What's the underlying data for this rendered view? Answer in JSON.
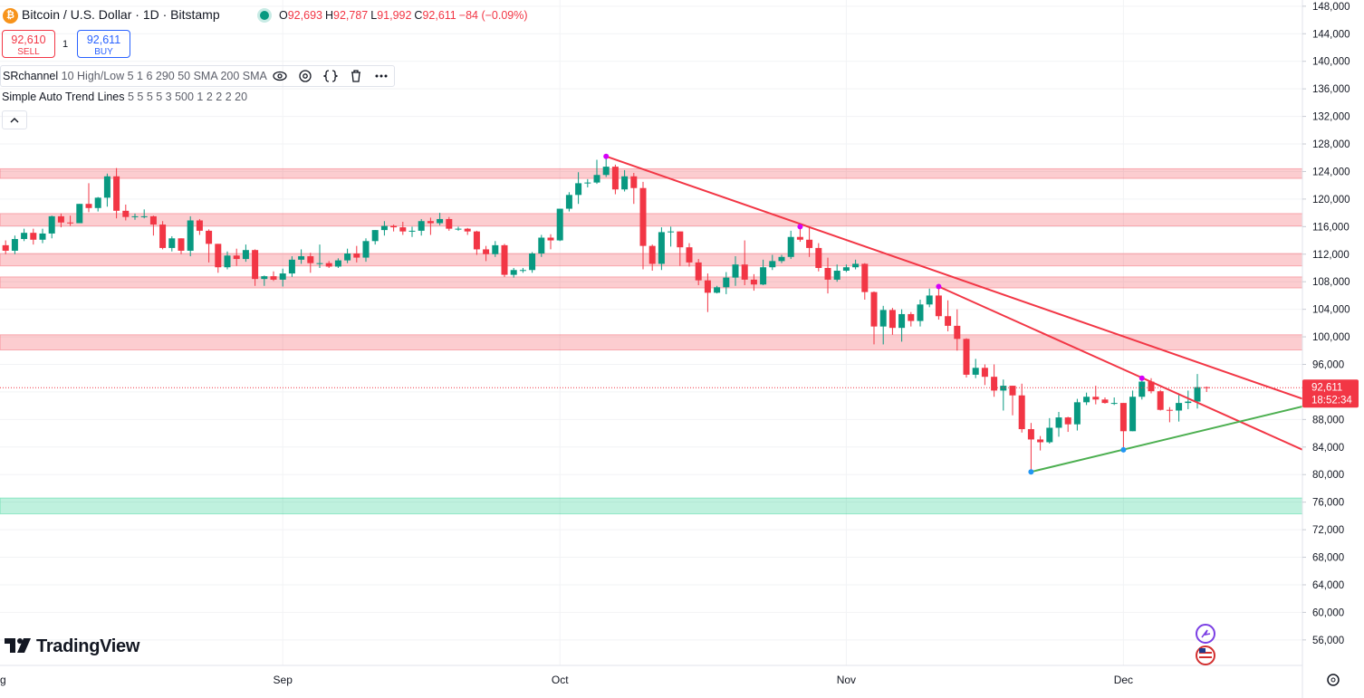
{
  "header": {
    "symbol": "Bitcoin / U.S. Dollar · 1D · Bitstamp",
    "ohlc": [
      {
        "label": "O",
        "value": "92,693"
      },
      {
        "label": "H",
        "value": "92,787"
      },
      {
        "label": "L",
        "value": "91,992"
      },
      {
        "label": "C",
        "value": "92,611"
      }
    ],
    "change": "−84 (−0.09%)"
  },
  "trade": {
    "sell_price": "92,610",
    "sell_label": "SELL",
    "quantity": "1",
    "buy_price": "92,611",
    "buy_label": "BUY"
  },
  "indicators": [
    {
      "name": "SRchannel",
      "params": "10 High/Low 5 1 6 290 50 SMA 200 SMA"
    },
    {
      "name": "Simple Auto Trend Lines",
      "params": "5 5 5 5 3 500 1 2 2 2 20"
    }
  ],
  "brand": "TradingView",
  "chart_data": {
    "type": "candlestick",
    "categories": [
      "Aug",
      null,
      null,
      null,
      null,
      null,
      null,
      null,
      null,
      null,
      null,
      null,
      null,
      null,
      null,
      null,
      null,
      null,
      null,
      null,
      null,
      null,
      null,
      null,
      null,
      null,
      null,
      null,
      null,
      null,
      null,
      "Sep",
      null,
      null,
      null,
      null,
      null,
      null,
      null,
      null,
      null,
      null,
      null,
      null,
      null,
      null,
      null,
      null,
      null,
      null,
      null,
      null,
      null,
      null,
      null,
      null,
      null,
      null,
      null,
      null,
      null,
      "Oct",
      null,
      null,
      null,
      null,
      null,
      null,
      null,
      null,
      null,
      null,
      null,
      null,
      null,
      null,
      null,
      null,
      null,
      null,
      null,
      null,
      null,
      null,
      null,
      null,
      null,
      null,
      null,
      null,
      null,
      null,
      "Nov",
      null,
      null,
      null,
      null,
      null,
      null,
      null,
      null,
      null,
      null,
      null,
      null,
      null,
      null,
      null,
      null,
      null,
      null,
      null,
      null,
      null,
      null,
      null,
      null,
      null,
      null,
      null,
      null,
      null,
      "Dec",
      null,
      null,
      null,
      null,
      null,
      null,
      null,
      null,
      null
    ],
    "open": [
      115700,
      113300,
      112500,
      114200,
      115100,
      114100,
      115000,
      117500,
      116600,
      116500,
      119300,
      118700,
      120200,
      123300,
      118300,
      117400,
      117500,
      117500,
      116300,
      112900,
      114300,
      112500,
      116900,
      115400,
      113500,
      110100,
      111800,
      111300,
      112600,
      108400,
      108800,
      108300,
      109200,
      111200,
      111700,
      110700,
      110700,
      110200,
      111100,
      112100,
      111500,
      113900,
      115500,
      116100,
      115900,
      115300,
      115400,
      116800,
      116500,
      117100,
      115700,
      115700,
      115300,
      112700,
      112000,
      113300,
      109000,
      109700,
      109700,
      112100,
      114400,
      114000,
      118600,
      120600,
      122300,
      122400,
      123500,
      124700,
      121400,
      123300,
      121600,
      113200,
      110600,
      115200,
      115300,
      113000,
      110800,
      108200,
      106400,
      107200,
      108600,
      110500,
      108300,
      107600,
      110100,
      111000,
      111600,
      114500,
      114100,
      112900,
      110000,
      108300,
      109600,
      110100,
      110600,
      106500,
      101500,
      103900,
      101300,
      103300,
      102300,
      104700,
      106000,
      103000,
      101600,
      99700,
      94500,
      95500,
      94200,
      92200,
      92900,
      91500,
      86600,
      85100,
      84700,
      86800,
      88300,
      87300,
      90500,
      91300,
      90900,
      90400,
      90400,
      86300,
      91300,
      93500,
      92100,
      89400,
      89300,
      90400,
      90600,
      92693
    ],
    "high": [
      116100,
      114000,
      114700,
      115700,
      115700,
      115700,
      117600,
      117900,
      117600,
      119300,
      122300,
      120300,
      123700,
      124500,
      119200,
      117900,
      118500,
      117600,
      116800,
      114600,
      114300,
      117500,
      117100,
      115600,
      113500,
      112400,
      112800,
      113400,
      112700,
      108900,
      109500,
      109900,
      111700,
      112700,
      112200,
      113400,
      111000,
      111400,
      112800,
      113200,
      114300,
      115500,
      116800,
      116300,
      116700,
      116000,
      117100,
      117300,
      118000,
      117400,
      116000,
      115800,
      115400,
      113200,
      113900,
      113500,
      110000,
      110000,
      112300,
      114800,
      114900,
      118600,
      121000,
      123900,
      122900,
      125700,
      126200,
      125000,
      124200,
      123800,
      122500,
      113400,
      115900,
      116000,
      115300,
      113600,
      111300,
      109200,
      107400,
      109400,
      111700,
      114000,
      109100,
      111200,
      111900,
      111900,
      115400,
      116100,
      116000,
      113600,
      111500,
      110500,
      110500,
      111200,
      110700,
      106600,
      104500,
      104200,
      104000,
      103600,
      105400,
      107000,
      107300,
      105300,
      104000,
      99800,
      96800,
      96000,
      96000,
      93800,
      92900,
      93200,
      87500,
      85600,
      88200,
      89100,
      88400,
      91000,
      91900,
      92900,
      91200,
      91200,
      90400,
      92200,
      94000,
      94000,
      92300,
      89800,
      91800,
      92200,
      94600,
      92787
    ],
    "low": [
      112800,
      112000,
      112000,
      113900,
      113400,
      113600,
      114300,
      115900,
      116100,
      116500,
      118100,
      118200,
      118900,
      117200,
      116900,
      117000,
      117200,
      114700,
      112700,
      112400,
      112000,
      111700,
      114800,
      110800,
      109300,
      109800,
      110300,
      110900,
      107400,
      107400,
      108100,
      107300,
      108700,
      110600,
      109300,
      110000,
      110000,
      110000,
      110700,
      110800,
      110900,
      113400,
      114700,
      115300,
      114800,
      114500,
      114700,
      114800,
      116200,
      115400,
      115400,
      114800,
      111900,
      111000,
      111600,
      108700,
      108600,
      109300,
      109300,
      111600,
      112700,
      113900,
      118200,
      119300,
      121700,
      122200,
      123200,
      120700,
      121100,
      119300,
      109800,
      109600,
      109700,
      113100,
      110300,
      110200,
      107500,
      103600,
      106300,
      106200,
      107400,
      107500,
      106700,
      107500,
      109700,
      110700,
      111300,
      113800,
      111600,
      109500,
      106300,
      108000,
      109400,
      109800,
      105400,
      98900,
      98900,
      100300,
      99300,
      101500,
      101500,
      104300,
      102500,
      100800,
      98000,
      94100,
      94000,
      93000,
      91300,
      89300,
      88600,
      86100,
      80400,
      83500,
      84500,
      85500,
      86200,
      86400,
      90100,
      90200,
      90300,
      90100,
      83600,
      86300,
      90900,
      91800,
      89300,
      87600,
      87700,
      89500,
      89600,
      91992
    ],
    "close": [
      113300,
      112500,
      114200,
      115100,
      114100,
      115000,
      117500,
      116600,
      116500,
      119300,
      118700,
      120200,
      123300,
      118300,
      117400,
      117500,
      117500,
      116300,
      112900,
      114300,
      112500,
      116900,
      115400,
      113500,
      110100,
      111800,
      111300,
      112600,
      108400,
      108800,
      108300,
      109200,
      111200,
      111700,
      110700,
      110700,
      110200,
      111100,
      112100,
      111500,
      113900,
      115500,
      116100,
      115900,
      115300,
      115400,
      116800,
      116500,
      117100,
      115700,
      115700,
      115300,
      112700,
      112000,
      113300,
      109000,
      109700,
      109700,
      112100,
      114400,
      114000,
      118600,
      120600,
      122300,
      122400,
      123500,
      124700,
      121400,
      123300,
      121600,
      113200,
      110600,
      115200,
      115300,
      113000,
      110800,
      108200,
      106400,
      107200,
      108600,
      110500,
      108300,
      107600,
      110100,
      111000,
      111600,
      114500,
      114100,
      112900,
      110000,
      108300,
      109600,
      110100,
      110600,
      106500,
      101500,
      103900,
      101300,
      103300,
      102300,
      104700,
      106000,
      103000,
      101600,
      99700,
      94500,
      95500,
      94200,
      92200,
      92900,
      91500,
      86600,
      85100,
      84700,
      86800,
      88300,
      87300,
      90500,
      91300,
      90900,
      90400,
      90400,
      86300,
      91300,
      93500,
      92100,
      89400,
      89300,
      90400,
      90600,
      92700,
      92611
    ],
    "up_color": "#089981",
    "down_color": "#f23645",
    "ylim": [
      52300,
      148900
    ],
    "yticks": [
      {
        "value": 56000,
        "label": "56,000"
      },
      {
        "value": 60000,
        "label": "60,000"
      },
      {
        "value": 64000,
        "label": "64,000"
      },
      {
        "value": 68000,
        "label": "68,000"
      },
      {
        "value": 72000,
        "label": "72,000"
      },
      {
        "value": 76000,
        "label": "76,000"
      },
      {
        "value": 80000,
        "label": "80,000"
      },
      {
        "value": 84000,
        "label": "84,000"
      },
      {
        "value": 88000,
        "label": "88,000"
      },
      {
        "value": 92000,
        "label": "92,000"
      },
      {
        "value": 96000,
        "label": "96,000"
      },
      {
        "value": 100000,
        "label": "100,000"
      },
      {
        "value": 104000,
        "label": "104,000"
      },
      {
        "value": 108000,
        "label": "108,000"
      },
      {
        "value": 112000,
        "label": "112,000"
      },
      {
        "value": 116000,
        "label": "116,000"
      },
      {
        "value": 120000,
        "label": "120,000"
      },
      {
        "value": 124000,
        "label": "124,000"
      },
      {
        "value": 128000,
        "label": "128,000"
      },
      {
        "value": 132000,
        "label": "132,000"
      },
      {
        "value": 136000,
        "label": "136,000"
      },
      {
        "value": 140000,
        "label": "140,000"
      },
      {
        "value": 144000,
        "label": "144,000"
      },
      {
        "value": 148000,
        "label": "148,000"
      }
    ],
    "grid": true,
    "zones": [
      {
        "low": 123000,
        "high": 124400,
        "color": "#f23645"
      },
      {
        "low": 116100,
        "high": 117900,
        "color": "#f23645"
      },
      {
        "low": 110300,
        "high": 112100,
        "color": "#f23645"
      },
      {
        "low": 107100,
        "high": 108700,
        "color": "#f23645"
      },
      {
        "low": 98100,
        "high": 100300,
        "color": "#f23645"
      },
      {
        "low": 74300,
        "high": 76600,
        "color": "#00c77a"
      }
    ],
    "trend_lines": [
      {
        "x": [
          66,
          141.4
        ],
        "y": [
          126200,
          91000
        ],
        "color": "#f23645"
      },
      {
        "x": [
          102,
          141.4
        ],
        "y": [
          107300,
          83600
        ],
        "color": "#f23645"
      },
      {
        "x": [
          112,
          141.4
        ],
        "y": [
          80400,
          89900
        ],
        "color": "#4caf50"
      }
    ],
    "pivots": [
      {
        "x": 66,
        "value": 126200,
        "color": "#d500f9"
      },
      {
        "x": 87,
        "value": 116000,
        "color": "#d500f9"
      },
      {
        "x": 102,
        "value": 107300,
        "color": "#d500f9"
      },
      {
        "x": 124,
        "value": 94000,
        "color": "#d500f9"
      },
      {
        "x": 112,
        "value": 80400,
        "color": "#2196f3"
      },
      {
        "x": 122,
        "value": 83600,
        "color": "#2196f3"
      }
    ],
    "price_tag": {
      "value": 92611,
      "label": "92,611",
      "countdown": "18:52:34",
      "color": "#f23645"
    }
  }
}
